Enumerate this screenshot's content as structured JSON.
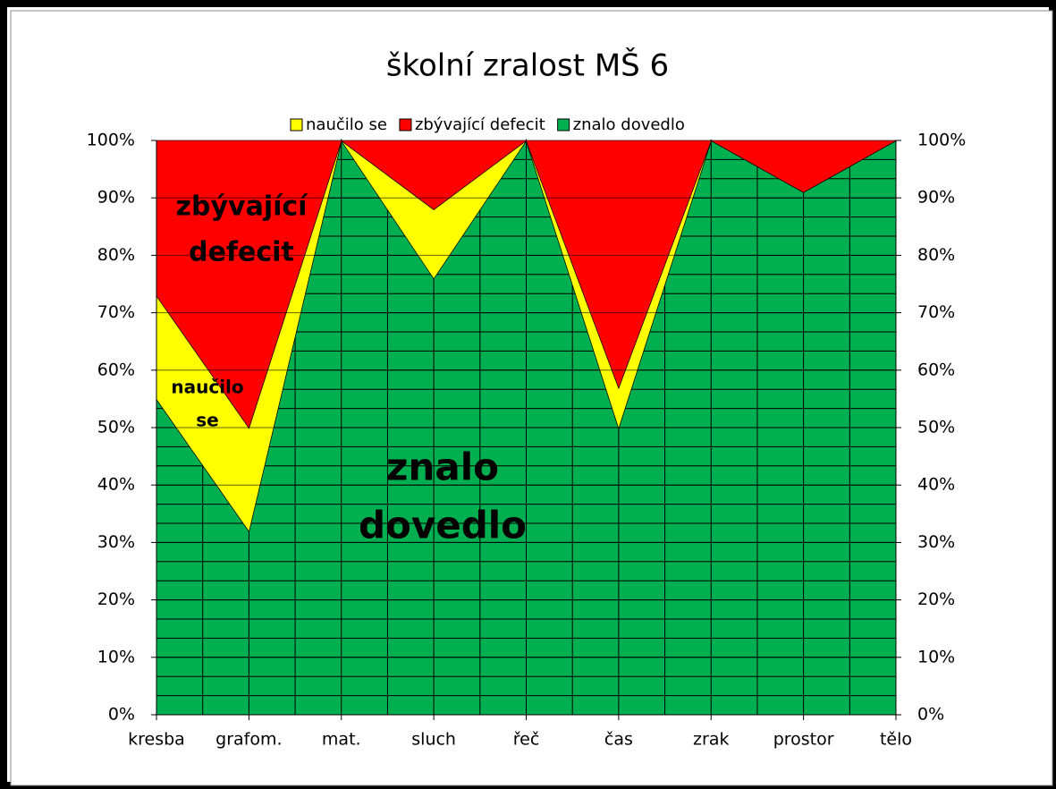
{
  "chart_data": {
    "type": "stacked_area",
    "title": "školní zralost MŠ 6",
    "categories": [
      "kresba",
      "grafom.",
      "mat.",
      "sluch",
      "řeč",
      "čas",
      "zrak",
      "prostor",
      "tělo"
    ],
    "series": [
      {
        "name": "naučilo se",
        "color": "#ffff00",
        "values": [
          18,
          18,
          0,
          12,
          0,
          7,
          0,
          0,
          0
        ]
      },
      {
        "name": "zbývající defecit",
        "color": "#ff0000",
        "values": [
          27,
          50,
          0,
          12,
          0,
          43,
          0,
          9,
          0
        ]
      },
      {
        "name": "znalo dovedlo",
        "color": "#00b050",
        "values": [
          55,
          32,
          100,
          76,
          100,
          50,
          100,
          91,
          100
        ]
      }
    ],
    "ylim": [
      0,
      100
    ],
    "yticks": [
      {
        "value": 0,
        "label": "0%"
      },
      {
        "value": 10,
        "label": "10%"
      },
      {
        "value": 20,
        "label": "20%"
      },
      {
        "value": 30,
        "label": "30%"
      },
      {
        "value": 40,
        "label": "40%"
      },
      {
        "value": 50,
        "label": "50%"
      },
      {
        "value": 60,
        "label": "60%"
      },
      {
        "value": 70,
        "label": "70%"
      },
      {
        "value": 80,
        "label": "80%"
      },
      {
        "value": 90,
        "label": "90%"
      },
      {
        "value": 100,
        "label": "100%"
      }
    ],
    "y2lim": [
      0,
      100
    ],
    "y2ticks": [
      {
        "value": 0,
        "label": "0%"
      },
      {
        "value": 10,
        "label": "10%"
      },
      {
        "value": 20,
        "label": "20%"
      },
      {
        "value": 30,
        "label": "30%"
      },
      {
        "value": 40,
        "label": "40%"
      },
      {
        "value": 50,
        "label": "50%"
      },
      {
        "value": 60,
        "label": "60%"
      },
      {
        "value": 70,
        "label": "70%"
      },
      {
        "value": 80,
        "label": "80%"
      },
      {
        "value": 90,
        "label": "90%"
      },
      {
        "value": 100,
        "label": "100%"
      }
    ],
    "grid": true,
    "legend": "top",
    "annotations": [
      [
        "zbývající",
        "defecit"
      ],
      [
        "naučilo",
        "se"
      ],
      [
        "znalo",
        "dovedlo"
      ]
    ]
  }
}
